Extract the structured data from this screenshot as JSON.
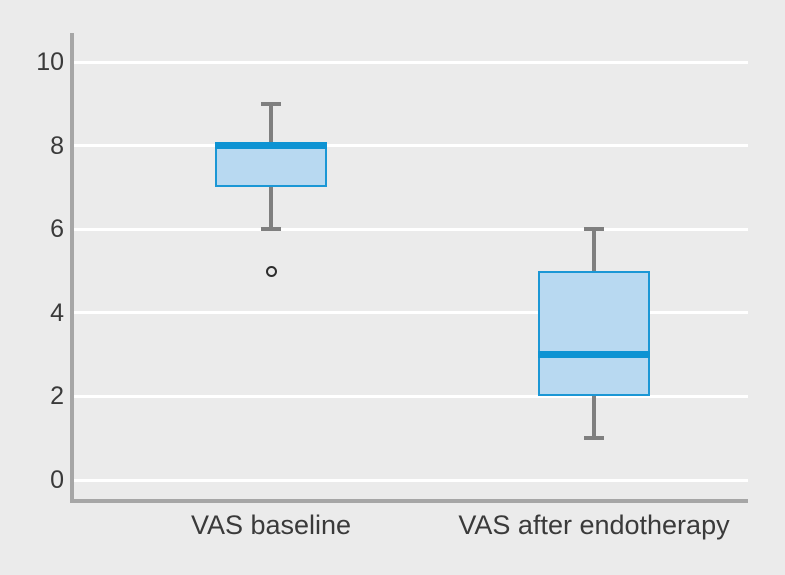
{
  "chart_data": {
    "type": "boxplot",
    "title": "",
    "xlabel": "",
    "ylabel": "",
    "categories": [
      "VAS baseline",
      "VAS after endotherapy"
    ],
    "series": [
      {
        "name": "VAS baseline",
        "whisker_low": 6,
        "q1": 7,
        "median": 8,
        "q3": 8,
        "whisker_high": 9,
        "outliers": [
          5
        ]
      },
      {
        "name": "VAS after endotherapy",
        "whisker_low": 1,
        "q1": 2,
        "median": 3,
        "q3": 5,
        "whisker_high": 6,
        "outliers": []
      }
    ],
    "ylim": [
      0,
      10
    ],
    "yticks": [
      0,
      2,
      4,
      6,
      8,
      10
    ],
    "grid": "horizontal-white-lines",
    "legend": "none",
    "colors": {
      "background": "#ebebeb",
      "gridline": "#ffffff",
      "axis": "#a6a6a6",
      "whisker": "#7f7f7f",
      "box_fill": "#b8d9f1",
      "box_border": "#1b97d5",
      "median": "#0d93d3",
      "outlier_ring": "#2d2d2d",
      "text": "#3a3a3a"
    }
  }
}
